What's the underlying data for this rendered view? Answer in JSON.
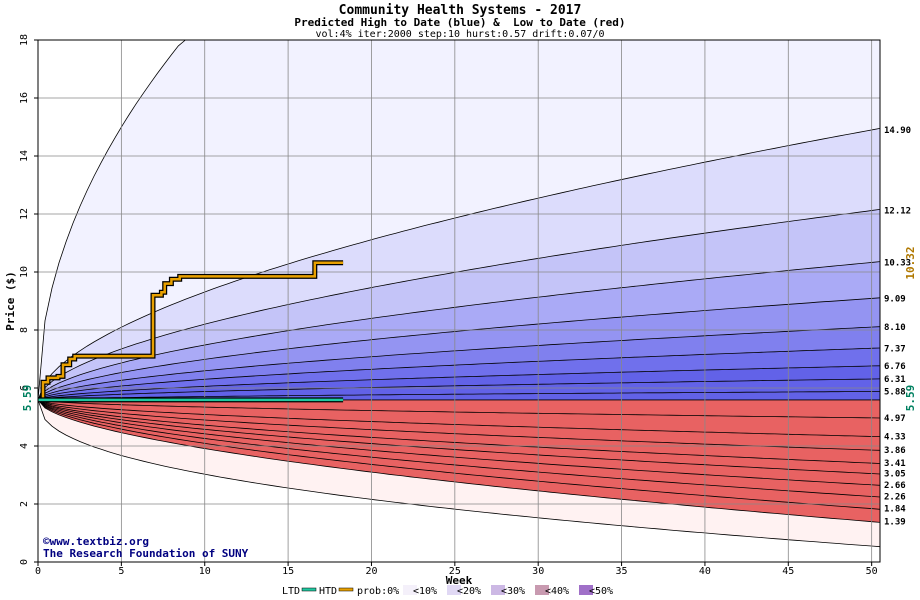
{
  "chart_data": {
    "type": "area",
    "title": "Community Health Systems - 2017",
    "subtitle": "Predicted High to Date (blue) &  Low to Date (red)",
    "params": "vol:4% iter:2000 step:10 hurst:0.57 drift:0.07/0",
    "xlabel": "Week",
    "ylabel": "Price ($)",
    "xlim": [
      0,
      50.5
    ],
    "ylim": [
      0,
      18
    ],
    "x_ticks": [
      0,
      5,
      10,
      15,
      20,
      25,
      30,
      35,
      40,
      45,
      50
    ],
    "y_ticks": [
      0,
      2,
      4,
      6,
      8,
      10,
      12,
      14,
      16,
      18
    ],
    "grid": true,
    "start_price": 5.59,
    "start_price_label": "5.59",
    "right_end_labels": {
      "htd_last": "10.32",
      "ltd_last": "5.59"
    },
    "end_values": {
      "high": [
        14.9,
        12.12,
        10.33,
        9.09,
        8.1,
        7.37,
        6.76,
        6.31,
        5.88
      ],
      "high_labels": [
        "14.90",
        "12.12",
        "10.33",
        "9.09",
        "8.10",
        "7.37",
        "6.76",
        "6.31",
        "5.88"
      ],
      "low": [
        4.97,
        4.33,
        3.86,
        3.41,
        3.05,
        2.66,
        2.26,
        1.84,
        1.39
      ],
      "low_labels": [
        "4.97",
        "4.33",
        "3.86",
        "3.41",
        "3.05",
        "2.66",
        "2.26",
        "1.84",
        "1.39"
      ],
      "high_outer_at_week": [
        8.7,
        18.0
      ],
      "low_outer_at_week_50": 0.55
    },
    "series": [
      {
        "name": "HTD",
        "color": "#e8a000",
        "x": [
          0,
          0.3,
          0.6,
          1.2,
          1.5,
          1.9,
          2.2,
          6.7,
          6.9,
          7.4,
          7.6,
          8.0,
          8.5,
          9.0,
          16.5,
          16.6,
          18.3
        ],
        "y": [
          5.59,
          6.2,
          6.35,
          6.4,
          6.8,
          7.0,
          7.1,
          7.1,
          9.2,
          9.3,
          9.6,
          9.75,
          9.85,
          9.85,
          9.85,
          10.32,
          10.32
        ]
      },
      {
        "name": "LTD",
        "color": "#20c8a0",
        "x": [
          0,
          18.3
        ],
        "y": [
          5.59,
          5.59
        ]
      }
    ],
    "legend": {
      "placement": "bottom",
      "items": [
        "LTD",
        "HTD",
        "prob:0%",
        "<10%",
        "<20%",
        "<30%",
        "<40%",
        "<50%"
      ]
    },
    "band_colors": {
      "high": [
        "#f2f2ff",
        "#dcdcfc",
        "#c4c4f8",
        "#aaaaf6",
        "#9494f2",
        "#8080ee",
        "#7070ec",
        "#6262e8"
      ],
      "low": [
        "#fff2f2",
        "#fcdcdc",
        "#f8c4c4",
        "#f6aaaa",
        "#f29494",
        "#ee8080",
        "#ec7070",
        "#e86262"
      ],
      "legend": [
        "#ffffff",
        "#f4f0fa",
        "#e0d8f4",
        "#ccb8e4",
        "#c89ab0",
        "#a070c8"
      ]
    },
    "credits": [
      "©www.textbiz.org",
      "The Research Foundation of SUNY"
    ]
  }
}
